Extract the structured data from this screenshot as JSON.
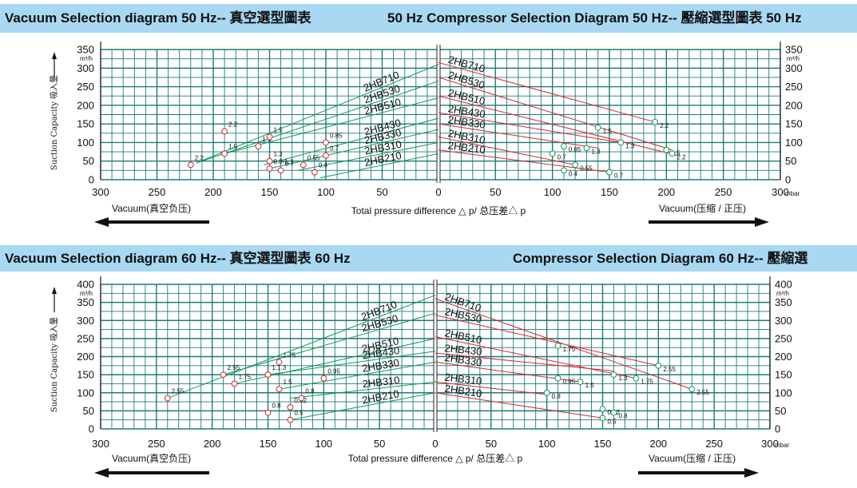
{
  "banners": {
    "top_left": "Vacuum Selection diagram 50 Hz-- 真空選型圖表",
    "top_right": "50 Hz Compressor Selection Diagram 50 Hz-- 壓縮選型圖表 50 Hz",
    "bottom_left": "Vacuum Selection diagram 60 Hz-- 真空選型圖表 60 Hz",
    "bottom_right": "Compressor Selection Diagram 60 Hz-- 壓縮選"
  },
  "common": {
    "y_unit": "m³/h",
    "y_axis_label": "Suction Capacity 吸入量",
    "x_axis_label": "Total pressure difference △ p/ 总压差△ p",
    "x_unit": "mbar",
    "vacuum_label": "Vacuum(真空负压)",
    "compressor_label": "Vacuum(压缩 / 正压)",
    "vacuum_color": "#0e9a56",
    "compressor_color": "#d8262e",
    "grid_color": "#1f7a7a"
  },
  "chart_data": [
    {
      "type": "line",
      "title": "Vacuum Selection diagram 50 Hz / 50 Hz Compressor Selection Diagram 50 Hz",
      "x_ticks_left": [
        300,
        250,
        200,
        150,
        100,
        50,
        0
      ],
      "x_ticks_right": [
        0,
        50,
        100,
        150,
        200,
        250,
        300
      ],
      "ylim": [
        0,
        350
      ],
      "y_ticks": [
        0,
        50,
        100,
        150,
        200,
        250,
        300,
        350
      ],
      "series_names": [
        "2HB710",
        "2HB530",
        "2HB510",
        "2HB430",
        "2HB330",
        "2HB310",
        "2HB210"
      ],
      "vacuum_lines": [
        {
          "name": "2HB710",
          "from": [
            215,
            45
          ],
          "to": [
            0,
            310
          ]
        },
        {
          "name": "2HB530",
          "from": [
            215,
            45
          ],
          "to": [
            0,
            265
          ]
        },
        {
          "name": "2HB510",
          "from": [
            190,
            70
          ],
          "to": [
            0,
            220
          ]
        },
        {
          "name": "2HB430",
          "from": [
            155,
            40
          ],
          "to": [
            0,
            165
          ]
        },
        {
          "name": "2HB330",
          "from": [
            150,
            30
          ],
          "to": [
            0,
            135
          ]
        },
        {
          "name": "2HB310",
          "from": [
            125,
            25
          ],
          "to": [
            0,
            100
          ]
        },
        {
          "name": "2HB210",
          "from": [
            105,
            5
          ],
          "to": [
            0,
            70
          ]
        }
      ],
      "compressor_lines": [
        {
          "name": "2HB710",
          "from": [
            0,
            315
          ],
          "to": [
            190,
            155
          ]
        },
        {
          "name": "2HB530",
          "from": [
            0,
            275
          ],
          "to": [
            205,
            80
          ]
        },
        {
          "name": "2HB510",
          "from": [
            0,
            225
          ],
          "to": [
            210,
            65
          ]
        },
        {
          "name": "2HB430",
          "from": [
            0,
            180
          ],
          "to": [
            160,
            100
          ]
        },
        {
          "name": "2HB330",
          "from": [
            0,
            150
          ],
          "to": [
            140,
            85
          ]
        },
        {
          "name": "2HB310",
          "from": [
            0,
            115
          ],
          "to": [
            120,
            40
          ]
        },
        {
          "name": "2HB210",
          "from": [
            0,
            80
          ],
          "to": [
            150,
            20
          ]
        }
      ],
      "vacuum_points": [
        {
          "x": 190,
          "y": 130,
          "label": "2.2"
        },
        {
          "x": 220,
          "y": 40,
          "label": "2.2"
        },
        {
          "x": 190,
          "y": 70,
          "label": "1.5"
        },
        {
          "x": 160,
          "y": 90,
          "label": "1.3"
        },
        {
          "x": 150,
          "y": 115,
          "label": "1.5"
        },
        {
          "x": 150,
          "y": 50,
          "label": "1.3"
        },
        {
          "x": 150,
          "y": 30,
          "label": "0.8-1.1"
        },
        {
          "x": 140,
          "y": 25,
          "label": "0.7"
        },
        {
          "x": 120,
          "y": 40,
          "label": "0.55"
        },
        {
          "x": 110,
          "y": 20,
          "label": "0.4"
        },
        {
          "x": 100,
          "y": 100,
          "label": "0.85"
        },
        {
          "x": 100,
          "y": 65,
          "label": "0.7"
        }
      ],
      "compressor_points": [
        {
          "x": 140,
          "y": 140,
          "label": "1.5"
        },
        {
          "x": 190,
          "y": 155,
          "label": "2.2"
        },
        {
          "x": 110,
          "y": 90,
          "label": "0.85"
        },
        {
          "x": 130,
          "y": 85,
          "label": "1.3"
        },
        {
          "x": 160,
          "y": 100,
          "label": "1.3"
        },
        {
          "x": 100,
          "y": 70,
          "label": "0.7"
        },
        {
          "x": 200,
          "y": 80,
          "label": "1.5"
        },
        {
          "x": 205,
          "y": 70,
          "label": "2.2"
        },
        {
          "x": 110,
          "y": 25,
          "label": "0.4"
        },
        {
          "x": 120,
          "y": 40,
          "label": "0.55"
        },
        {
          "x": 150,
          "y": 20,
          "label": "0.7"
        }
      ]
    },
    {
      "type": "line",
      "title": "Vacuum Selection diagram 60 Hz / Compressor Selection Diagram 60 Hz",
      "x_ticks_left": [
        300,
        250,
        200,
        150,
        100,
        50,
        0
      ],
      "x_ticks_right": [
        0,
        50,
        100,
        150,
        200,
        250,
        300
      ],
      "ylim": [
        0,
        400
      ],
      "y_ticks": [
        0,
        50,
        100,
        150,
        200,
        250,
        300,
        350,
        400
      ],
      "series_names": [
        "2HB710",
        "2HB530",
        "2HB510",
        "2HB430",
        "2HB330",
        "2HB310",
        "2HB210"
      ],
      "vacuum_lines": [
        {
          "name": "2HB710",
          "from": [
            240,
            85
          ],
          "to": [
            0,
            370
          ]
        },
        {
          "name": "2HB530",
          "from": [
            190,
            150
          ],
          "to": [
            0,
            320
          ]
        },
        {
          "name": "2HB510",
          "from": [
            180,
            125
          ],
          "to": [
            0,
            250
          ]
        },
        {
          "name": "2HB430",
          "from": [
            150,
            150
          ],
          "to": [
            0,
            215
          ]
        },
        {
          "name": "2HB330",
          "from": [
            140,
            110
          ],
          "to": [
            0,
            185
          ]
        },
        {
          "name": "2HB310",
          "from": [
            130,
            85
          ],
          "to": [
            0,
            130
          ]
        },
        {
          "name": "2HB210",
          "from": [
            130,
            25
          ],
          "to": [
            0,
            100
          ]
        }
      ],
      "compressor_lines": [
        {
          "name": "2HB710",
          "from": [
            0,
            360
          ],
          "to": [
            230,
            110
          ]
        },
        {
          "name": "2HB530",
          "from": [
            0,
            315
          ],
          "to": [
            200,
            175
          ]
        },
        {
          "name": "2HB510",
          "from": [
            0,
            255
          ],
          "to": [
            180,
            140
          ]
        },
        {
          "name": "2HB430",
          "from": [
            0,
            210
          ],
          "to": [
            160,
            160
          ]
        },
        {
          "name": "2HB330",
          "from": [
            0,
            185
          ],
          "to": [
            130,
            130
          ]
        },
        {
          "name": "2HB310",
          "from": [
            0,
            130
          ],
          "to": [
            100,
            95
          ]
        },
        {
          "name": "2HB210",
          "from": [
            0,
            100
          ],
          "to": [
            150,
            30
          ]
        }
      ],
      "vacuum_points": [
        {
          "x": 240,
          "y": 85,
          "label": "2.55"
        },
        {
          "x": 190,
          "y": 150,
          "label": "2.55"
        },
        {
          "x": 180,
          "y": 125,
          "label": "1.75"
        },
        {
          "x": 150,
          "y": 150,
          "label": "1.1.3"
        },
        {
          "x": 140,
          "y": 185,
          "label": "1.75"
        },
        {
          "x": 140,
          "y": 110,
          "label": "1.5"
        },
        {
          "x": 130,
          "y": 60,
          "label": "0.62"
        },
        {
          "x": 120,
          "y": 85,
          "label": "0.8"
        },
        {
          "x": 150,
          "y": 45,
          "label": "0.8"
        },
        {
          "x": 130,
          "y": 25,
          "label": "0.5"
        },
        {
          "x": 100,
          "y": 140,
          "label": "0.95"
        }
      ],
      "compressor_points": [
        {
          "x": 110,
          "y": 230,
          "label": "1.75"
        },
        {
          "x": 110,
          "y": 140,
          "label": "0.95"
        },
        {
          "x": 130,
          "y": 130,
          "label": "1.5"
        },
        {
          "x": 160,
          "y": 150,
          "label": "1.3"
        },
        {
          "x": 180,
          "y": 140,
          "label": "1.75"
        },
        {
          "x": 200,
          "y": 175,
          "label": "2.55"
        },
        {
          "x": 230,
          "y": 110,
          "label": "2.55"
        },
        {
          "x": 100,
          "y": 100,
          "label": "0.8"
        },
        {
          "x": 150,
          "y": 55,
          "label": "0.62"
        },
        {
          "x": 160,
          "y": 45,
          "label": "0.8"
        },
        {
          "x": 150,
          "y": 30,
          "label": "0.5"
        }
      ]
    }
  ]
}
